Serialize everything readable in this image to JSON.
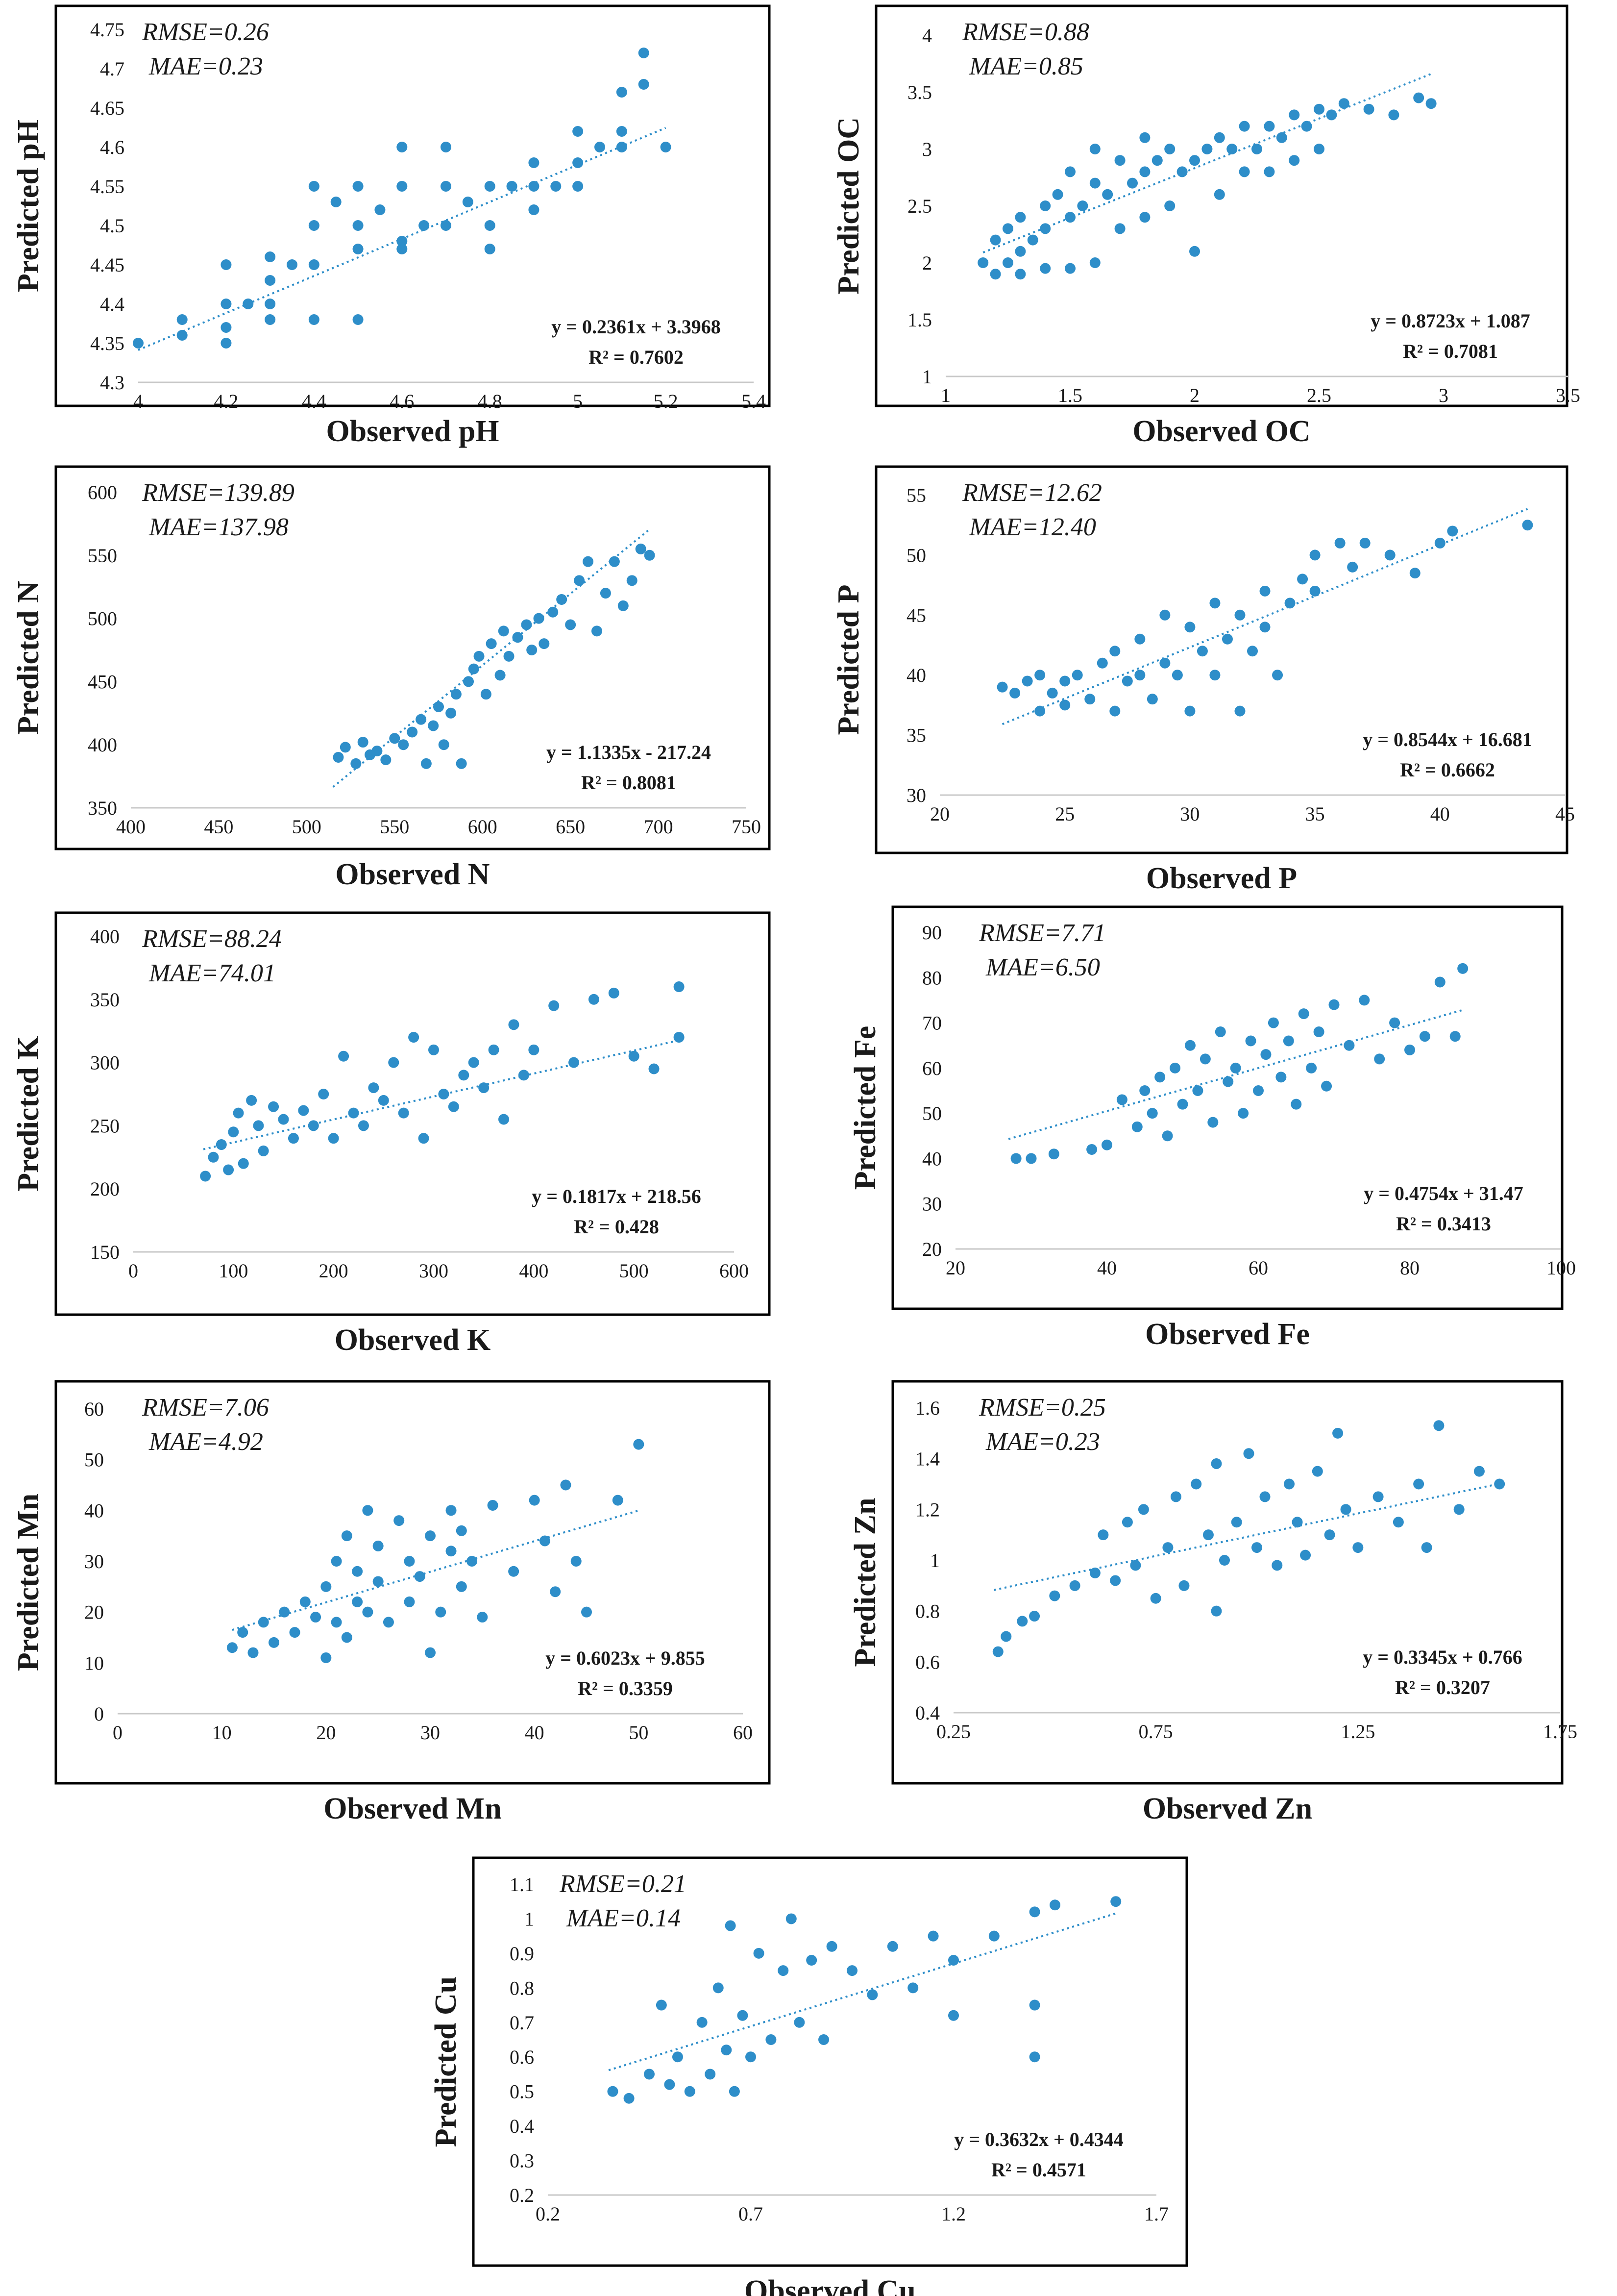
{
  "figure": {
    "colors": {
      "point": "#2e8ec9",
      "trend": "#2e8ec9",
      "frame": "#000000",
      "text": "#1a1a1a"
    }
  },
  "chart_data": [
    {
      "id": "ph",
      "type": "scatter",
      "trendline": true,
      "title": "",
      "xlabel": "Observed pH",
      "ylabel": "Predicted pH",
      "xlim": [
        4,
        5.4
      ],
      "ylim": [
        4.3,
        4.75
      ],
      "xticks": [
        "4",
        "4.2",
        "4.4",
        "4.6",
        "4.8",
        "5",
        "5.2",
        "5.4"
      ],
      "yticks": [
        "4.3",
        "4.35",
        "4.4",
        "4.45",
        "4.5",
        "4.55",
        "4.6",
        "4.65",
        "4.7",
        "4.75"
      ],
      "rmse": "RMSE=0.26",
      "mae": "MAE=0.23",
      "equation": "y = 0.2361x + 3.3968",
      "r2": "R² = 0.7602",
      "slope": 0.2361,
      "intercept": 3.3968,
      "trend_x": [
        4.0,
        5.2
      ],
      "x": [
        4.0,
        4.1,
        4.1,
        4.2,
        4.2,
        4.2,
        4.2,
        4.25,
        4.3,
        4.3,
        4.3,
        4.3,
        4.35,
        4.4,
        4.4,
        4.4,
        4.4,
        4.45,
        4.5,
        4.5,
        4.5,
        4.5,
        4.55,
        4.6,
        4.6,
        4.6,
        4.6,
        4.65,
        4.7,
        4.7,
        4.7,
        4.75,
        4.8,
        4.8,
        4.8,
        4.85,
        4.9,
        4.9,
        4.9,
        4.95,
        5.0,
        5.0,
        5.0,
        5.05,
        5.1,
        5.1,
        5.1,
        5.15,
        5.15,
        5.2
      ],
      "y": [
        4.35,
        4.36,
        4.38,
        4.37,
        4.4,
        4.45,
        4.35,
        4.4,
        4.4,
        4.43,
        4.46,
        4.38,
        4.45,
        4.45,
        4.5,
        4.55,
        4.38,
        4.53,
        4.47,
        4.5,
        4.55,
        4.38,
        4.52,
        4.48,
        4.55,
        4.6,
        4.47,
        4.5,
        4.5,
        4.55,
        4.6,
        4.53,
        4.47,
        4.5,
        4.55,
        4.55,
        4.52,
        4.55,
        4.58,
        4.55,
        4.55,
        4.58,
        4.62,
        4.6,
        4.6,
        4.62,
        4.67,
        4.68,
        4.72,
        4.6
      ]
    },
    {
      "id": "oc",
      "type": "scatter",
      "trendline": true,
      "title": "",
      "xlabel": "Observed OC",
      "ylabel": "Predicted OC",
      "xlim": [
        1,
        3.5
      ],
      "ylim": [
        1,
        4
      ],
      "xticks": [
        "1",
        "1.5",
        "2",
        "2.5",
        "3",
        "3.5"
      ],
      "yticks": [
        "1",
        "1.5",
        "2",
        "2.5",
        "3",
        "3.5",
        "4"
      ],
      "rmse": "RMSE=0.88",
      "mae": "MAE=0.85",
      "equation": "y = 0.8723x + 1.087",
      "r2": "R² = 0.7081",
      "slope": 0.8723,
      "intercept": 1.087,
      "trend_x": [
        1.15,
        2.95
      ],
      "x": [
        1.15,
        1.2,
        1.2,
        1.25,
        1.25,
        1.3,
        1.3,
        1.3,
        1.35,
        1.4,
        1.4,
        1.4,
        1.45,
        1.5,
        1.5,
        1.5,
        1.55,
        1.6,
        1.6,
        1.6,
        1.65,
        1.7,
        1.7,
        1.75,
        1.8,
        1.8,
        1.8,
        1.85,
        1.9,
        1.9,
        1.95,
        2.0,
        2.0,
        2.05,
        2.1,
        2.1,
        2.15,
        2.2,
        2.2,
        2.25,
        2.3,
        2.3,
        2.35,
        2.4,
        2.4,
        2.45,
        2.5,
        2.5,
        2.55,
        2.6,
        2.7,
        2.8,
        2.9,
        2.95
      ],
      "y": [
        2.0,
        1.9,
        2.2,
        2.0,
        2.3,
        1.9,
        2.1,
        2.4,
        2.2,
        1.95,
        2.5,
        2.3,
        2.6,
        1.95,
        2.4,
        2.8,
        2.5,
        2.0,
        2.7,
        3.0,
        2.6,
        2.3,
        2.9,
        2.7,
        2.4,
        2.8,
        3.1,
        2.9,
        2.5,
        3.0,
        2.8,
        2.1,
        2.9,
        3.0,
        2.6,
        3.1,
        3.0,
        2.8,
        3.2,
        3.0,
        2.8,
        3.2,
        3.1,
        2.9,
        3.3,
        3.2,
        3.0,
        3.35,
        3.3,
        3.4,
        3.35,
        3.3,
        3.45,
        3.4
      ]
    },
    {
      "id": "n",
      "type": "scatter",
      "trendline": true,
      "title": "",
      "xlabel": "Observed N",
      "ylabel": "Predicted N",
      "xlim": [
        400,
        750
      ],
      "ylim": [
        350,
        600
      ],
      "xticks": [
        "400",
        "450",
        "500",
        "550",
        "600",
        "650",
        "700",
        "750"
      ],
      "yticks": [
        "350",
        "400",
        "450",
        "500",
        "550",
        "600"
      ],
      "rmse": "RMSE=139.89",
      "mae": "MAE=137.98",
      "equation": "y = 1.1335x - 217.24",
      "r2": "R² = 0.8081",
      "slope": 1.1335,
      "intercept": -217.24,
      "trend_x": [
        515,
        695
      ],
      "x": [
        518,
        522,
        528,
        532,
        536,
        540,
        545,
        550,
        555,
        560,
        565,
        568,
        572,
        575,
        578,
        582,
        585,
        588,
        592,
        595,
        598,
        602,
        605,
        610,
        612,
        615,
        620,
        625,
        628,
        632,
        635,
        640,
        645,
        650,
        655,
        660,
        665,
        670,
        675,
        680,
        685,
        690,
        695
      ],
      "y": [
        390,
        398,
        385,
        402,
        392,
        395,
        388,
        405,
        400,
        410,
        420,
        385,
        415,
        430,
        400,
        425,
        440,
        385,
        450,
        460,
        470,
        440,
        480,
        455,
        490,
        470,
        485,
        495,
        475,
        500,
        480,
        505,
        515,
        495,
        530,
        545,
        490,
        520,
        545,
        510,
        530,
        555,
        550
      ]
    },
    {
      "id": "p",
      "type": "scatter",
      "trendline": true,
      "title": "",
      "xlabel": "Observed P",
      "ylabel": "Predicted P",
      "xlim": [
        20,
        45
      ],
      "ylim": [
        30,
        55
      ],
      "xticks": [
        "20",
        "25",
        "30",
        "35",
        "40",
        "45"
      ],
      "yticks": [
        "30",
        "35",
        "40",
        "45",
        "50",
        "55"
      ],
      "rmse": "RMSE=12.62",
      "mae": "MAE=12.40",
      "equation": "y = 0.8544x + 16.681",
      "r2": "R² = 0.6662",
      "slope": 0.8544,
      "intercept": 16.681,
      "trend_x": [
        22.5,
        43.5
      ],
      "x": [
        22.5,
        23,
        23.5,
        24,
        24,
        24.5,
        25,
        25,
        25.5,
        26,
        26.5,
        27,
        27,
        27.5,
        28,
        28,
        28.5,
        29,
        29,
        29.5,
        30,
        30,
        30.5,
        31,
        31,
        31.5,
        32,
        32,
        32.5,
        33,
        33,
        33.5,
        34,
        34.5,
        35,
        35,
        36,
        36.5,
        37,
        38,
        39,
        40,
        40.5,
        43.5
      ],
      "y": [
        39,
        38.5,
        39.5,
        37,
        40,
        38.5,
        39.5,
        37.5,
        40,
        38,
        41,
        37,
        42,
        39.5,
        40,
        43,
        38,
        41,
        45,
        40,
        37,
        44,
        42,
        40,
        46,
        43,
        37,
        45,
        42,
        44,
        47,
        40,
        46,
        48,
        50,
        47,
        51,
        49,
        51,
        50,
        48.5,
        51,
        52,
        52.5
      ]
    },
    {
      "id": "k",
      "type": "scatter",
      "trendline": true,
      "title": "",
      "xlabel": "Observed K",
      "ylabel": "Predicted K",
      "xlim": [
        0,
        600
      ],
      "ylim": [
        150,
        400
      ],
      "xticks": [
        "0",
        "100",
        "200",
        "300",
        "400",
        "500",
        "600"
      ],
      "yticks": [
        "150",
        "200",
        "250",
        "300",
        "350",
        "400"
      ],
      "rmse": "RMSE=88.24",
      "mae": "MAE=74.01",
      "equation": "y = 0.1817x + 218.56",
      "r2": "R² = 0.428",
      "slope": 0.1817,
      "intercept": 218.56,
      "trend_x": [
        70,
        545
      ],
      "x": [
        72,
        80,
        88,
        95,
        100,
        105,
        110,
        118,
        125,
        130,
        140,
        150,
        160,
        170,
        180,
        190,
        200,
        210,
        220,
        230,
        240,
        250,
        260,
        270,
        280,
        290,
        300,
        310,
        320,
        330,
        340,
        350,
        360,
        370,
        380,
        390,
        400,
        420,
        440,
        460,
        480,
        500,
        520,
        545,
        545
      ],
      "y": [
        210,
        225,
        235,
        215,
        245,
        260,
        220,
        270,
        250,
        230,
        265,
        255,
        240,
        262,
        250,
        275,
        240,
        305,
        260,
        250,
        280,
        270,
        300,
        260,
        320,
        240,
        310,
        275,
        265,
        290,
        300,
        280,
        310,
        255,
        330,
        290,
        310,
        345,
        300,
        350,
        355,
        305,
        295,
        360,
        320
      ]
    },
    {
      "id": "fe",
      "type": "scatter",
      "trendline": true,
      "title": "",
      "xlabel": "Observed Fe",
      "ylabel": "Predicted Fe",
      "xlim": [
        20,
        100
      ],
      "ylim": [
        20,
        90
      ],
      "xticks": [
        "20",
        "40",
        "60",
        "80",
        "100"
      ],
      "yticks": [
        "20",
        "30",
        "40",
        "50",
        "60",
        "70",
        "80",
        "90"
      ],
      "rmse": "RMSE=7.71",
      "mae": "MAE=6.50",
      "equation": "y = 0.4754x + 31.47",
      "r2": "R² = 0.3413",
      "slope": 0.4754,
      "intercept": 31.47,
      "trend_x": [
        27,
        87
      ],
      "x": [
        28,
        30,
        33,
        38,
        40,
        42,
        44,
        45,
        46,
        47,
        48,
        49,
        50,
        51,
        52,
        53,
        54,
        55,
        56,
        57,
        58,
        59,
        60,
        61,
        62,
        63,
        64,
        65,
        66,
        67,
        68,
        69,
        70,
        72,
        74,
        76,
        78,
        80,
        82,
        84,
        86,
        87
      ],
      "y": [
        40,
        40,
        41,
        42,
        43,
        53,
        47,
        55,
        50,
        58,
        45,
        60,
        52,
        65,
        55,
        62,
        48,
        68,
        57,
        60,
        50,
        66,
        55,
        63,
        70,
        58,
        66,
        52,
        72,
        60,
        68,
        56,
        74,
        65,
        75,
        62,
        70,
        64,
        67,
        79,
        67,
        82
      ]
    },
    {
      "id": "mn",
      "type": "scatter",
      "trendline": true,
      "title": "",
      "xlabel": "Observed Mn",
      "ylabel": "Predicted Mn",
      "xlim": [
        0,
        60
      ],
      "ylim": [
        0,
        60
      ],
      "xticks": [
        "0",
        "10",
        "20",
        "30",
        "40",
        "50",
        "60"
      ],
      "yticks": [
        "0",
        "10",
        "20",
        "30",
        "40",
        "50",
        "60"
      ],
      "rmse": "RMSE=7.06",
      "mae": "MAE=4.92",
      "equation": "y = 0.6023x + 9.855",
      "r2": "R² = 0.3359",
      "slope": 0.6023,
      "intercept": 9.855,
      "trend_x": [
        11,
        50
      ],
      "x": [
        11,
        12,
        13,
        14,
        15,
        16,
        17,
        18,
        19,
        20,
        20,
        21,
        21,
        22,
        22,
        23,
        23,
        24,
        24,
        25,
        25,
        26,
        27,
        28,
        28,
        29,
        30,
        30,
        31,
        32,
        32,
        33,
        33,
        34,
        35,
        36,
        38,
        40,
        41,
        42,
        43,
        44,
        45,
        48,
        50
      ],
      "y": [
        13,
        16,
        12,
        18,
        14,
        20,
        16,
        22,
        19,
        11,
        25,
        18,
        30,
        15,
        35,
        22,
        28,
        20,
        40,
        26,
        33,
        18,
        38,
        22,
        30,
        27,
        12,
        35,
        20,
        32,
        40,
        25,
        36,
        30,
        19,
        41,
        28,
        42,
        34,
        24,
        45,
        30,
        20,
        42,
        53
      ]
    },
    {
      "id": "zn",
      "type": "scatter",
      "trendline": true,
      "title": "",
      "xlabel": "Observed Zn",
      "ylabel": "Predicted Zn",
      "xlim": [
        0.25,
        1.75
      ],
      "ylim": [
        0.4,
        1.6
      ],
      "xticks": [
        "0.25",
        "0.75",
        "1.25",
        "1.75"
      ],
      "yticks": [
        "0.4",
        "0.6",
        "0.8",
        "1",
        "1.2",
        "1.4",
        "1.6"
      ],
      "rmse": "RMSE=0.25",
      "mae": "MAE=0.23",
      "equation": "y = 0.3345x + 0.766",
      "r2": "R² = 0.3207",
      "slope": 0.3345,
      "intercept": 0.766,
      "trend_x": [
        0.35,
        1.6
      ],
      "x": [
        0.36,
        0.38,
        0.42,
        0.45,
        0.5,
        0.55,
        0.6,
        0.62,
        0.65,
        0.68,
        0.7,
        0.72,
        0.75,
        0.78,
        0.8,
        0.82,
        0.85,
        0.88,
        0.9,
        0.9,
        0.92,
        0.95,
        0.98,
        1.0,
        1.02,
        1.05,
        1.08,
        1.1,
        1.12,
        1.15,
        1.18,
        1.2,
        1.22,
        1.25,
        1.3,
        1.35,
        1.4,
        1.42,
        1.45,
        1.5,
        1.55,
        1.6
      ],
      "y": [
        0.64,
        0.7,
        0.76,
        0.78,
        0.86,
        0.9,
        0.95,
        1.1,
        0.92,
        1.15,
        0.98,
        1.2,
        0.85,
        1.05,
        1.25,
        0.9,
        1.3,
        1.1,
        0.8,
        1.38,
        1.0,
        1.15,
        1.42,
        1.05,
        1.25,
        0.98,
        1.3,
        1.15,
        1.02,
        1.35,
        1.1,
        1.5,
        1.2,
        1.05,
        1.25,
        1.15,
        1.3,
        1.05,
        1.53,
        1.2,
        1.35,
        1.3
      ]
    },
    {
      "id": "cu",
      "type": "scatter",
      "trendline": true,
      "title": "",
      "xlabel": "Observed Cu",
      "ylabel": "Predicted Cu",
      "xlim": [
        0.2,
        1.7
      ],
      "ylim": [
        0.2,
        1.1
      ],
      "xticks": [
        "0.2",
        "0.7",
        "1.2",
        "1.7"
      ],
      "yticks": [
        "0.2",
        "0.3",
        "0.4",
        "0.5",
        "0.6",
        "0.7",
        "0.8",
        "0.9",
        "1",
        "1.1"
      ],
      "rmse": "RMSE=0.21",
      "mae": "MAE=0.14",
      "equation": "y = 0.3632x + 0.4344",
      "r2": "R² = 0.4571",
      "slope": 0.3632,
      "intercept": 0.4344,
      "trend_x": [
        0.35,
        1.6
      ],
      "x": [
        0.36,
        0.4,
        0.45,
        0.48,
        0.5,
        0.52,
        0.55,
        0.58,
        0.6,
        0.62,
        0.64,
        0.65,
        0.66,
        0.68,
        0.7,
        0.72,
        0.75,
        0.78,
        0.8,
        0.82,
        0.85,
        0.88,
        0.9,
        0.95,
        1.0,
        1.05,
        1.1,
        1.15,
        1.2,
        1.2,
        1.3,
        1.4,
        1.4,
        1.4,
        1.45,
        1.6
      ],
      "y": [
        0.5,
        0.48,
        0.55,
        0.75,
        0.52,
        0.6,
        0.5,
        0.7,
        0.55,
        0.8,
        0.62,
        0.98,
        0.5,
        0.72,
        0.6,
        0.9,
        0.65,
        0.85,
        1.0,
        0.7,
        0.88,
        0.65,
        0.92,
        0.85,
        0.78,
        0.92,
        0.8,
        0.95,
        0.72,
        0.88,
        0.95,
        0.6,
        0.75,
        1.02,
        1.04,
        1.05
      ]
    }
  ]
}
